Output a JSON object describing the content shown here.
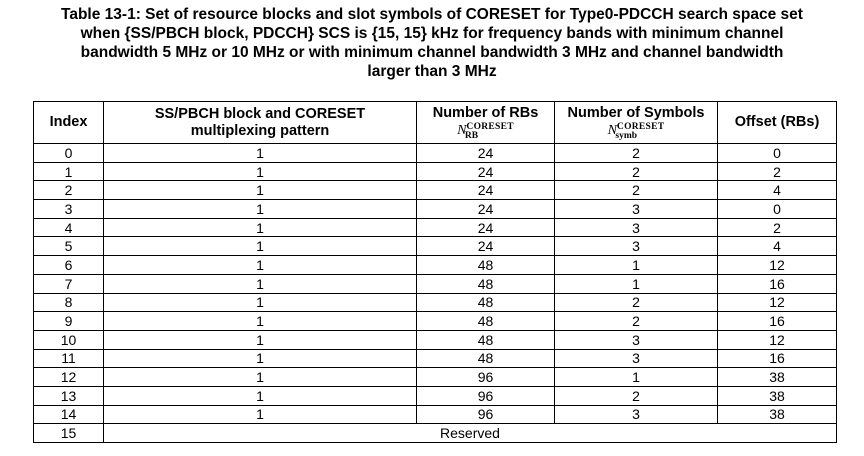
{
  "caption": {
    "lines": [
      "Table 13-1: Set of resource blocks and slot symbols of CORESET for Type0-PDCCH search space set",
      "when {SS/PBCH block, PDCCH} SCS is {15, 15} kHz for frequency bands with minimum channel",
      "bandwidth 5 MHz or 10 MHz or with minimum channel bandwidth 3 MHz and channel bandwidth",
      "larger than 3 MHz"
    ]
  },
  "table": {
    "headers": {
      "index": "Index",
      "pattern_line1": "SS/PBCH block and CORESET",
      "pattern_line2": "multiplexing pattern",
      "rbs": "Number of RBs",
      "rbs_symbol": "N",
      "rbs_sup": "CORESET",
      "rbs_sub": "RB",
      "symbols": "Number of Symbols",
      "symbols_symbol": "N",
      "symbols_sup": "CORESET",
      "symbols_sub": "symb",
      "offset": "Offset (RBs)"
    },
    "rows": [
      {
        "index": "0",
        "pattern": "1",
        "rbs": "24",
        "symbols": "2",
        "offset": "0"
      },
      {
        "index": "1",
        "pattern": "1",
        "rbs": "24",
        "symbols": "2",
        "offset": "2"
      },
      {
        "index": "2",
        "pattern": "1",
        "rbs": "24",
        "symbols": "2",
        "offset": "4"
      },
      {
        "index": "3",
        "pattern": "1",
        "rbs": "24",
        "symbols": "3",
        "offset": "0"
      },
      {
        "index": "4",
        "pattern": "1",
        "rbs": "24",
        "symbols": "3",
        "offset": "2"
      },
      {
        "index": "5",
        "pattern": "1",
        "rbs": "24",
        "symbols": "3",
        "offset": "4"
      },
      {
        "index": "6",
        "pattern": "1",
        "rbs": "48",
        "symbols": "1",
        "offset": "12"
      },
      {
        "index": "7",
        "pattern": "1",
        "rbs": "48",
        "symbols": "1",
        "offset": "16"
      },
      {
        "index": "8",
        "pattern": "1",
        "rbs": "48",
        "symbols": "2",
        "offset": "12"
      },
      {
        "index": "9",
        "pattern": "1",
        "rbs": "48",
        "symbols": "2",
        "offset": "16"
      },
      {
        "index": "10",
        "pattern": "1",
        "rbs": "48",
        "symbols": "3",
        "offset": "12"
      },
      {
        "index": "11",
        "pattern": "1",
        "rbs": "48",
        "symbols": "3",
        "offset": "16"
      },
      {
        "index": "12",
        "pattern": "1",
        "rbs": "96",
        "symbols": "1",
        "offset": "38"
      },
      {
        "index": "13",
        "pattern": "1",
        "rbs": "96",
        "symbols": "2",
        "offset": "38"
      },
      {
        "index": "14",
        "pattern": "1",
        "rbs": "96",
        "symbols": "3",
        "offset": "38"
      }
    ],
    "reserved_row": {
      "index": "15",
      "text": "Reserved"
    }
  }
}
